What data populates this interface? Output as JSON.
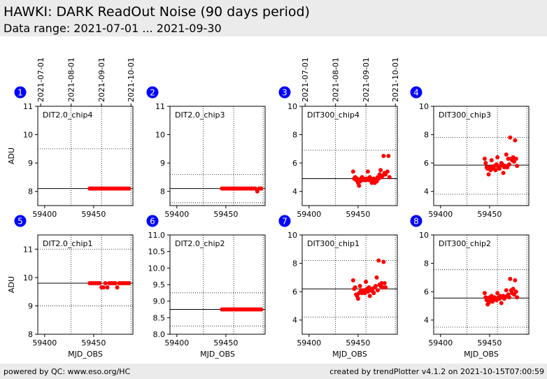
{
  "header": {
    "title": "HAWKI: DARK ReadOut Noise (90 days period)",
    "subtitle": "Data range: 2021-07-01 ... 2021-09-30"
  },
  "footer": {
    "left": "powered by QC: www.eso.org/HC",
    "right": "created by trendPlotter v4.1.2 on 2021-10-15T07:00:59"
  },
  "colors": {
    "points": "#ff0000",
    "badge": "#0000ff",
    "header_bg": "#ebebeb"
  },
  "chart_data": [
    {
      "type": "scatter",
      "badge": "1",
      "label": "DIT2.0_chip4",
      "xlabel": "",
      "ylabel": "ADU",
      "xlim": [
        59393,
        59490
      ],
      "ylim": [
        7.5,
        11
      ],
      "yticks": [
        8,
        9,
        10,
        11
      ],
      "top_ticks": [
        "2021-07-01",
        "2021-08-01",
        "2021-09-01",
        "2021-10-01"
      ],
      "ref_line": 8.1,
      "limits": [
        9.5,
        7.5
      ],
      "points": [
        [
          59446,
          8.1
        ],
        [
          59448,
          8.1
        ],
        [
          59450,
          8.1
        ],
        [
          59452,
          8.1
        ],
        [
          59454,
          8.1
        ],
        [
          59456,
          8.1
        ],
        [
          59458,
          8.1
        ],
        [
          59460,
          8.1
        ],
        [
          59462,
          8.1
        ],
        [
          59464,
          8.1
        ],
        [
          59466,
          8.1
        ],
        [
          59468,
          8.1
        ],
        [
          59470,
          8.1
        ],
        [
          59472,
          8.1
        ],
        [
          59474,
          8.1
        ],
        [
          59476,
          8.1
        ],
        [
          59478,
          8.1
        ],
        [
          59480,
          8.1
        ],
        [
          59482,
          8.1
        ],
        [
          59484,
          8.1
        ],
        [
          59486,
          8.1
        ]
      ]
    },
    {
      "type": "scatter",
      "badge": "2",
      "label": "DIT2.0_chip3",
      "xlabel": "",
      "ylabel": "",
      "xlim": [
        59393,
        59490
      ],
      "ylim": [
        7.5,
        11
      ],
      "yticks": [
        8,
        9,
        10,
        11
      ],
      "top_ticks": [],
      "ref_line": 8.1,
      "limits": [
        8.6,
        7.6
      ],
      "points": [
        [
          59446,
          8.1
        ],
        [
          59448,
          8.1
        ],
        [
          59450,
          8.1
        ],
        [
          59452,
          8.1
        ],
        [
          59454,
          8.1
        ],
        [
          59456,
          8.1
        ],
        [
          59458,
          8.1
        ],
        [
          59460,
          8.1
        ],
        [
          59462,
          8.1
        ],
        [
          59464,
          8.1
        ],
        [
          59466,
          8.1
        ],
        [
          59468,
          8.1
        ],
        [
          59470,
          8.1
        ],
        [
          59472,
          8.1
        ],
        [
          59474,
          8.1
        ],
        [
          59476,
          8.1
        ],
        [
          59478,
          8.1
        ],
        [
          59480,
          8.1
        ],
        [
          59482,
          8.0
        ],
        [
          59484,
          8.1
        ],
        [
          59486,
          8.1
        ]
      ]
    },
    {
      "type": "scatter",
      "badge": "3",
      "label": "DIT300_chip4",
      "xlabel": "",
      "ylabel": "",
      "xlim": [
        59393,
        59490
      ],
      "ylim": [
        3,
        10
      ],
      "yticks": [
        4,
        6,
        8,
        10
      ],
      "top_ticks": [
        "2021-07-01",
        "2021-08-01",
        "2021-09-01",
        "2021-10-01"
      ],
      "ref_line": 4.9,
      "limits": [
        6.9,
        2.9
      ],
      "points": [
        [
          59445,
          5.4
        ],
        [
          59446,
          4.9
        ],
        [
          59447,
          5.0
        ],
        [
          59448,
          4.8
        ],
        [
          59449,
          4.9
        ],
        [
          59450,
          4.6
        ],
        [
          59451,
          4.4
        ],
        [
          59452,
          4.7
        ],
        [
          59453,
          4.9
        ],
        [
          59454,
          5.0
        ],
        [
          59455,
          4.8
        ],
        [
          59456,
          4.9
        ],
        [
          59457,
          4.8
        ],
        [
          59458,
          4.8
        ],
        [
          59459,
          4.9
        ],
        [
          59460,
          5.4
        ],
        [
          59461,
          4.8
        ],
        [
          59462,
          5.0
        ],
        [
          59463,
          4.9
        ],
        [
          59464,
          4.6
        ],
        [
          59465,
          4.7
        ],
        [
          59466,
          4.9
        ],
        [
          59467,
          4.6
        ],
        [
          59468,
          4.8
        ],
        [
          59469,
          4.7
        ],
        [
          59470,
          5.0
        ],
        [
          59471,
          4.9
        ],
        [
          59472,
          5.2
        ],
        [
          59473,
          5.5
        ],
        [
          59474,
          5.0
        ],
        [
          59475,
          5.1
        ],
        [
          59476,
          6.5
        ],
        [
          59477,
          5.3
        ],
        [
          59478,
          5.2
        ],
        [
          59480,
          5.4
        ],
        [
          59481,
          6.5
        ],
        [
          59482,
          5.0
        ]
      ]
    },
    {
      "type": "scatter",
      "badge": "4",
      "label": "DIT300_chip3",
      "xlabel": "",
      "ylabel": "",
      "xlim": [
        59393,
        59490
      ],
      "ylim": [
        3,
        10
      ],
      "yticks": [
        4,
        6,
        8,
        10
      ],
      "top_ticks": [],
      "ref_line": 5.85,
      "limits": [
        7.8,
        3.8
      ],
      "points": [
        [
          59445,
          6.3
        ],
        [
          59446,
          6.0
        ],
        [
          59447,
          5.7
        ],
        [
          59448,
          5.6
        ],
        [
          59449,
          5.2
        ],
        [
          59450,
          5.7
        ],
        [
          59451,
          5.5
        ],
        [
          59452,
          6.2
        ],
        [
          59453,
          5.7
        ],
        [
          59454,
          5.6
        ],
        [
          59455,
          5.8
        ],
        [
          59456,
          5.5
        ],
        [
          59457,
          5.9
        ],
        [
          59458,
          6.4
        ],
        [
          59459,
          5.7
        ],
        [
          59460,
          5.6
        ],
        [
          59461,
          5.8
        ],
        [
          59462,
          6.0
        ],
        [
          59463,
          5.9
        ],
        [
          59464,
          5.3
        ],
        [
          59465,
          5.7
        ],
        [
          59466,
          5.8
        ],
        [
          59467,
          6.6
        ],
        [
          59468,
          5.7
        ],
        [
          59469,
          6.3
        ],
        [
          59470,
          5.9
        ],
        [
          59471,
          7.8
        ],
        [
          59472,
          6.3
        ],
        [
          59473,
          6.2
        ],
        [
          59474,
          6.4
        ],
        [
          59475,
          6.1
        ],
        [
          59476,
          7.6
        ],
        [
          59477,
          6.3
        ],
        [
          59478,
          5.8
        ]
      ]
    },
    {
      "type": "scatter",
      "badge": "5",
      "label": "DIT2.0_chip1",
      "xlabel": "MJD_OBS",
      "ylabel": "ADU",
      "xlim": [
        59393,
        59490
      ],
      "ylim": [
        8,
        11.5
      ],
      "yticks": [
        8,
        9,
        10,
        11
      ],
      "top_ticks": [],
      "ref_line": 9.8,
      "limits": [
        11.0,
        9.0
      ],
      "points": [
        [
          59446,
          9.8
        ],
        [
          59448,
          9.8
        ],
        [
          59450,
          9.8
        ],
        [
          59452,
          9.8
        ],
        [
          59454,
          9.8
        ],
        [
          59456,
          9.8
        ],
        [
          59458,
          9.65
        ],
        [
          59460,
          9.65
        ],
        [
          59462,
          9.8
        ],
        [
          59464,
          9.65
        ],
        [
          59466,
          9.8
        ],
        [
          59468,
          9.8
        ],
        [
          59470,
          9.8
        ],
        [
          59472,
          9.8
        ],
        [
          59474,
          9.65
        ],
        [
          59476,
          9.8
        ],
        [
          59478,
          9.8
        ],
        [
          59480,
          9.8
        ],
        [
          59482,
          9.8
        ],
        [
          59484,
          9.8
        ],
        [
          59486,
          9.8
        ]
      ]
    },
    {
      "type": "scatter",
      "badge": "6",
      "label": "DIT2.0_chip2",
      "xlabel": "MJD_OBS",
      "ylabel": "",
      "xlim": [
        59393,
        59490
      ],
      "ylim": [
        8,
        11
      ],
      "yticks": [
        8.0,
        8.5,
        9.0,
        9.5,
        10.0,
        10.5,
        11.0
      ],
      "top_ticks": [],
      "ref_line": 8.75,
      "limits": [
        9.25,
        8.25
      ],
      "points": [
        [
          59446,
          8.75
        ],
        [
          59448,
          8.75
        ],
        [
          59450,
          8.75
        ],
        [
          59452,
          8.75
        ],
        [
          59454,
          8.75
        ],
        [
          59456,
          8.75
        ],
        [
          59458,
          8.75
        ],
        [
          59460,
          8.75
        ],
        [
          59462,
          8.75
        ],
        [
          59464,
          8.75
        ],
        [
          59466,
          8.75
        ],
        [
          59468,
          8.75
        ],
        [
          59470,
          8.75
        ],
        [
          59472,
          8.75
        ],
        [
          59474,
          8.75
        ],
        [
          59476,
          8.75
        ],
        [
          59478,
          8.75
        ],
        [
          59480,
          8.75
        ],
        [
          59482,
          8.75
        ],
        [
          59484,
          8.75
        ],
        [
          59486,
          8.75
        ]
      ]
    },
    {
      "type": "scatter",
      "badge": "7",
      "label": "DIT300_chip1",
      "xlabel": "MJD_OBS",
      "ylabel": "",
      "xlim": [
        59393,
        59490
      ],
      "ylim": [
        3,
        10
      ],
      "yticks": [
        4,
        6,
        8,
        10
      ],
      "top_ticks": [],
      "ref_line": 6.2,
      "limits": [
        8.2,
        4.2
      ],
      "points": [
        [
          59445,
          6.8
        ],
        [
          59446,
          6.2
        ],
        [
          59447,
          6.3
        ],
        [
          59448,
          5.8
        ],
        [
          59449,
          5.7
        ],
        [
          59450,
          5.5
        ],
        [
          59451,
          5.9
        ],
        [
          59452,
          6.4
        ],
        [
          59453,
          6.1
        ],
        [
          59454,
          5.9
        ],
        [
          59455,
          6.0
        ],
        [
          59456,
          6.1
        ],
        [
          59457,
          5.9
        ],
        [
          59458,
          6.7
        ],
        [
          59459,
          6.2
        ],
        [
          59460,
          6.0
        ],
        [
          59461,
          6.3
        ],
        [
          59462,
          5.7
        ],
        [
          59463,
          6.1
        ],
        [
          59464,
          6.2
        ],
        [
          59465,
          6.0
        ],
        [
          59466,
          5.9
        ],
        [
          59467,
          6.3
        ],
        [
          59468,
          6.4
        ],
        [
          59469,
          7.0
        ],
        [
          59470,
          6.1
        ],
        [
          59471,
          8.2
        ],
        [
          59472,
          6.5
        ],
        [
          59473,
          6.4
        ],
        [
          59474,
          6.6
        ],
        [
          59475,
          6.3
        ],
        [
          59476,
          8.1
        ],
        [
          59477,
          6.6
        ],
        [
          59478,
          6.3
        ]
      ]
    },
    {
      "type": "scatter",
      "badge": "8",
      "label": "DIT300_chip2",
      "xlabel": "MJD_OBS",
      "ylabel": "",
      "xlim": [
        59393,
        59490
      ],
      "ylim": [
        3,
        10
      ],
      "yticks": [
        4,
        6,
        8,
        10
      ],
      "top_ticks": [],
      "ref_line": 5.55,
      "limits": [
        7.55,
        3.5
      ],
      "points": [
        [
          59445,
          5.9
        ],
        [
          59446,
          5.6
        ],
        [
          59447,
          5.4
        ],
        [
          59448,
          5.1
        ],
        [
          59449,
          5.2
        ],
        [
          59450,
          5.6
        ],
        [
          59451,
          5.4
        ],
        [
          59452,
          5.7
        ],
        [
          59453,
          5.3
        ],
        [
          59454,
          5.5
        ],
        [
          59455,
          5.6
        ],
        [
          59456,
          5.5
        ],
        [
          59457,
          5.4
        ],
        [
          59458,
          5.9
        ],
        [
          59459,
          5.6
        ],
        [
          59460,
          5.5
        ],
        [
          59461,
          5.7
        ],
        [
          59462,
          5.2
        ],
        [
          59463,
          5.6
        ],
        [
          59464,
          5.7
        ],
        [
          59465,
          5.5
        ],
        [
          59466,
          5.6
        ],
        [
          59467,
          6.1
        ],
        [
          59468,
          5.7
        ],
        [
          59469,
          5.8
        ],
        [
          59470,
          5.6
        ],
        [
          59471,
          6.9
        ],
        [
          59472,
          6.1
        ],
        [
          59473,
          5.9
        ],
        [
          59474,
          6.2
        ],
        [
          59475,
          5.8
        ],
        [
          59476,
          6.8
        ],
        [
          59477,
          6.0
        ],
        [
          59478,
          5.6
        ]
      ]
    }
  ]
}
